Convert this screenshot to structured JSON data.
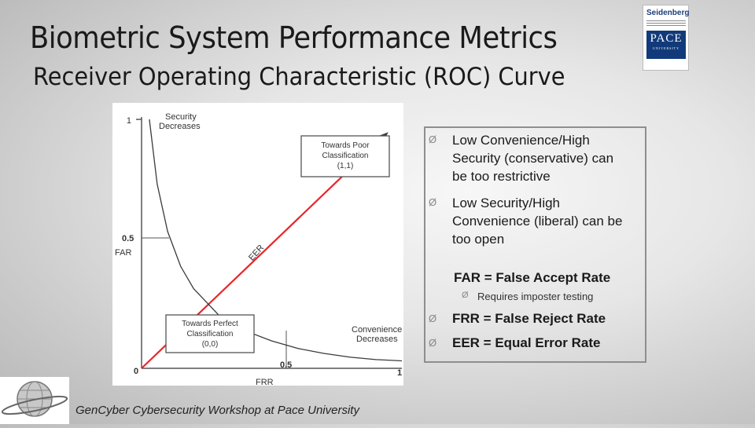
{
  "slide": {
    "title": "Biometric System Performance Metrics",
    "subtitle": "Receiver Operating Characteristic (ROC) Curve"
  },
  "logo": {
    "seidenberg": "Seidenberg",
    "pace": "PACE",
    "pace_sub": "UNIVERSITY",
    "icon": "pace-university-logo"
  },
  "chart_data": {
    "type": "line",
    "xlabel": "FRR",
    "ylabel": "FAR",
    "xlim": [
      0,
      1
    ],
    "ylim": [
      0,
      1
    ],
    "ticks": {
      "x0": "0",
      "x05": "0.5",
      "x1": "1",
      "y1": "1",
      "y05": "0.5"
    },
    "series": [
      {
        "name": "EER",
        "x": [
          0,
          1
        ],
        "y": [
          0,
          1
        ]
      },
      {
        "x": [
          0.03,
          0.06,
          0.1,
          0.15,
          0.2,
          0.3,
          0.4,
          0.5,
          0.6,
          0.7,
          0.8,
          0.9,
          1.0
        ],
        "y": [
          1.0,
          0.74,
          0.55,
          0.41,
          0.32,
          0.21,
          0.15,
          0.11,
          0.08,
          0.06,
          0.045,
          0.035,
          0.03
        ]
      }
    ],
    "annotations": {
      "security_decreases": [
        "Security",
        "Decreases"
      ],
      "poor": [
        "Towards Poor",
        "Classification",
        "(1,1)"
      ],
      "perfect": [
        "Towards Perfect",
        "Classification",
        "(0,0)"
      ],
      "convenience_decreases": [
        "Convenience",
        "Decreases"
      ],
      "eer": "EER"
    },
    "colors": {
      "diagonal": "#e8262a",
      "curve": "#3a3a3a",
      "text": "#3a3a3a"
    }
  },
  "bullets": {
    "b1": [
      "Low Convenience/High",
      "Security (conservative) can",
      "be too restrictive"
    ],
    "b2": [
      "Low Security/High",
      "Convenience (liberal) can be",
      "too open"
    ],
    "far": "FAR = False Accept Rate",
    "far_sub": "Requires imposter testing",
    "frr": "FRR = False Reject Rate",
    "eer": "EER = Equal Error Rate",
    "arrow_glyph": "Ø"
  },
  "footer": {
    "text": "GenCyber Cybersecurity Workshop at Pace University",
    "logo_icon": "gencyber-globe-logo"
  }
}
